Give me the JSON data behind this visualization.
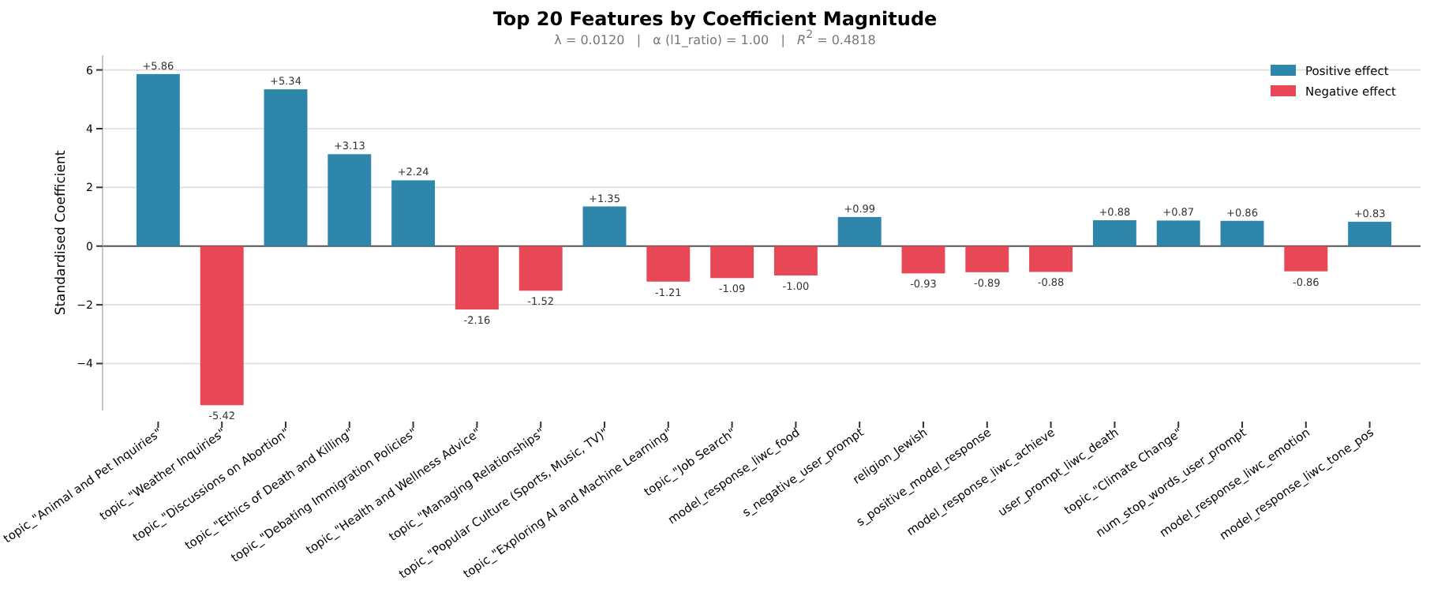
{
  "chart_data": {
    "type": "bar",
    "title": "Top 20 Features by Coefficient Magnitude",
    "subtitle": "λ = 0.0120   |   α (l1_ratio) = 1.00   |   R$^{2}$ = 0.4818",
    "ylabel": "Standardised Coefficient",
    "categories": [
      "topic_\"Animal and Pet Inquiries\"",
      "topic_\"Weather Inquiries\"",
      "topic_\"Discussions on Abortion\"",
      "topic_\"Ethics of Death and Killing\"",
      "topic_\"Debating Immigration Policies\"",
      "topic_\"Health and Wellness Advice\"",
      "topic_\"Managing Relationships\"",
      "topic_\"Popular Culture (Sports, Music, TV)\"",
      "topic_\"Exploring AI and Machine Learning\"",
      "topic_\"Job Search\"",
      "model_response_liwc_food",
      "s_negative_user_prompt",
      "religion_Jewish",
      "s_positive_model_response",
      "model_response_liwc_achieve",
      "user_prompt_liwc_death",
      "topic_\"Climate Change\"",
      "num_stop_words_user_prompt",
      "model_response_liwc_emotion",
      "model_response_liwc_tone_pos"
    ],
    "series": [
      {
        "name": "Positive effect",
        "color": "#2e86ab",
        "values": [
          5.86,
          null,
          5.34,
          3.13,
          2.24,
          null,
          null,
          1.35,
          null,
          null,
          null,
          0.99,
          null,
          null,
          null,
          0.88,
          0.87,
          0.86,
          null,
          0.83
        ],
        "value_labels": [
          "+5.86",
          null,
          "+5.34",
          "+3.13",
          "+2.24",
          null,
          null,
          "+1.35",
          null,
          null,
          null,
          "+0.99",
          null,
          null,
          null,
          "+0.88",
          "+0.87",
          "+0.86",
          null,
          "+0.83"
        ]
      },
      {
        "name": "Negative effect",
        "color": "#e84855",
        "values": [
          null,
          -5.42,
          null,
          null,
          null,
          -2.16,
          -1.52,
          null,
          -1.21,
          -1.09,
          -1.0,
          null,
          -0.93,
          -0.89,
          -0.88,
          null,
          null,
          null,
          -0.86,
          null
        ],
        "value_labels": [
          null,
          "-5.42",
          null,
          null,
          null,
          "-2.16",
          "-1.52",
          null,
          "-1.21",
          "-1.09",
          "-1.00",
          null,
          "-0.93",
          "-0.89",
          "-0.88",
          null,
          null,
          null,
          "-0.86",
          null
        ]
      }
    ],
    "ylim": [
      -5.6,
      6.5
    ],
    "yticks": [
      {
        "value": -4,
        "label": "−4"
      },
      {
        "value": -2,
        "label": "−2"
      },
      0,
      2,
      4,
      6
    ],
    "grid": "y",
    "legend": "top right",
    "ref_lines": [
      {
        "axis": "y",
        "value": 0,
        "color": "#555555"
      }
    ]
  }
}
